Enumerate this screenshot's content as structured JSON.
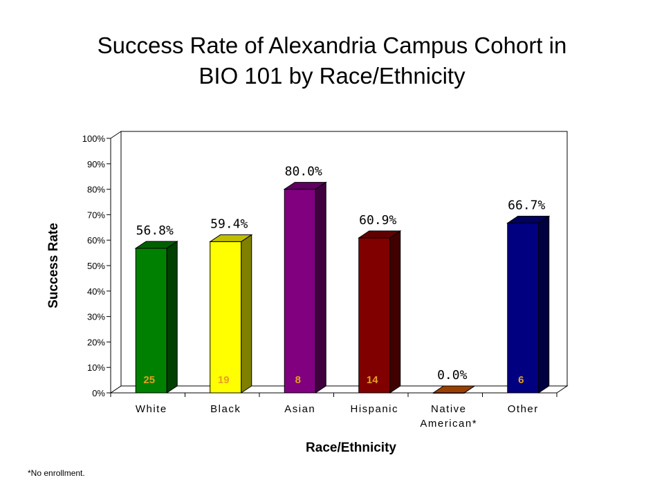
{
  "title_lines": [
    "Success Rate of Alexandria Campus Cohort in",
    "BIO 101 by Race/Ethnicity"
  ],
  "footnote": "*No enrollment.",
  "chart_data": {
    "type": "bar",
    "title": "Success Rate of Alexandria Campus Cohort in BIO 101 by Race/Ethnicity",
    "xlabel": "Race/Ethnicity",
    "ylabel": "Success Rate",
    "ylim": [
      0,
      100
    ],
    "yticks": [
      "0%",
      "10%",
      "20%",
      "30%",
      "40%",
      "50%",
      "60%",
      "70%",
      "80%",
      "90%",
      "100%"
    ],
    "grid": false,
    "legend": "none",
    "categories": [
      {
        "label": [
          "White"
        ],
        "value": 56.8,
        "value_label": "56.8%",
        "count_label": "25",
        "color": "#008000"
      },
      {
        "label": [
          "Black"
        ],
        "value": 59.4,
        "value_label": "59.4%",
        "count_label": "19",
        "color": "#FFFF00"
      },
      {
        "label": [
          "Asian"
        ],
        "value": 80.0,
        "value_label": "80.0%",
        "count_label": "8",
        "color": "#800080"
      },
      {
        "label": [
          "Hispanic"
        ],
        "value": 60.9,
        "value_label": "60.9%",
        "count_label": "14",
        "color": "#800000"
      },
      {
        "label": [
          "Native",
          "American*"
        ],
        "value": 0.0,
        "value_label": "0.0%",
        "count_label": "",
        "color": "#CC5500"
      },
      {
        "label": [
          "Other"
        ],
        "value": 66.7,
        "value_label": "66.7%",
        "count_label": "6",
        "color": "#000080"
      }
    ]
  }
}
